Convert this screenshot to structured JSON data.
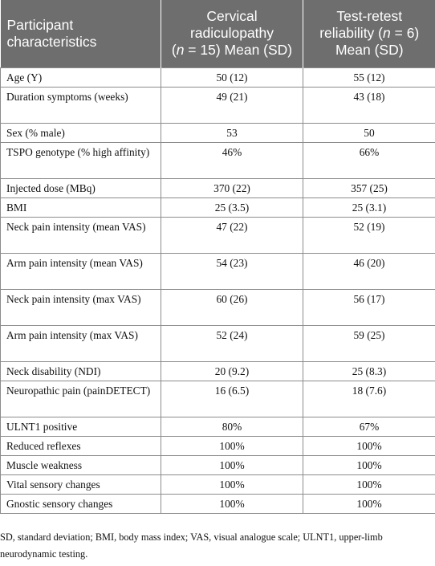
{
  "header": {
    "col1": "Participant characteristics",
    "col2_line1": "Cervical radiculopathy",
    "col2_open": "(",
    "col2_n": "n",
    "col2_rest": " = 15) Mean (SD)",
    "col3_line1": "Test-retest reliability (",
    "col3_n": "n",
    "col3_rest": " = 6) Mean (SD)"
  },
  "rows": [
    {
      "label": "Age (Y)",
      "cr": "50 (12)",
      "trr": "55 (12)"
    },
    {
      "label": "Duration symptoms (weeks)",
      "cr": "49 (21)",
      "trr": "43 (18)"
    },
    {
      "label": "Sex (% male)",
      "cr": "53",
      "trr": "50"
    },
    {
      "label": "TSPO genotype (% high affinity)",
      "cr": "46%",
      "trr": "66%"
    },
    {
      "label": "Injected dose (MBq)",
      "cr": "370 (22)",
      "trr": "357 (25)"
    },
    {
      "label": "BMI",
      "cr": "25 (3.5)",
      "trr": "25 (3.1)"
    },
    {
      "label": "Neck pain intensity (mean VAS)",
      "cr": "47 (22)",
      "trr": "52 (19)"
    },
    {
      "label": "Arm pain intensity (mean VAS)",
      "cr": "54 (23)",
      "trr": "46 (20)"
    },
    {
      "label": "Neck pain intensity (max VAS)",
      "cr": "60 (26)",
      "trr": "56 (17)"
    },
    {
      "label": "Arm pain intensity (max VAS)",
      "cr": "52 (24)",
      "trr": "59 (25)"
    },
    {
      "label": "Neck disability (NDI)",
      "cr": "20 (9.2)",
      "trr": "25 (8.3)"
    },
    {
      "label": "Neuropathic pain (painDETECT)",
      "cr": "16 (6.5)",
      "trr": "18 (7.6)"
    },
    {
      "label": "ULNT1 positive",
      "cr": "80%",
      "trr": "67%"
    },
    {
      "label": "Reduced reflexes",
      "cr": "100%",
      "trr": "100%"
    },
    {
      "label": "Muscle weakness",
      "cr": "100%",
      "trr": "100%"
    },
    {
      "label": "Vital sensory changes",
      "cr": "100%",
      "trr": "100%"
    },
    {
      "label": "Gnostic sensory changes",
      "cr": "100%",
      "trr": "100%"
    }
  ],
  "footnote": "SD, standard deviation; BMI, body mass index; VAS, visual analogue scale; ULNT1, upper-limb neurodynamic testing."
}
